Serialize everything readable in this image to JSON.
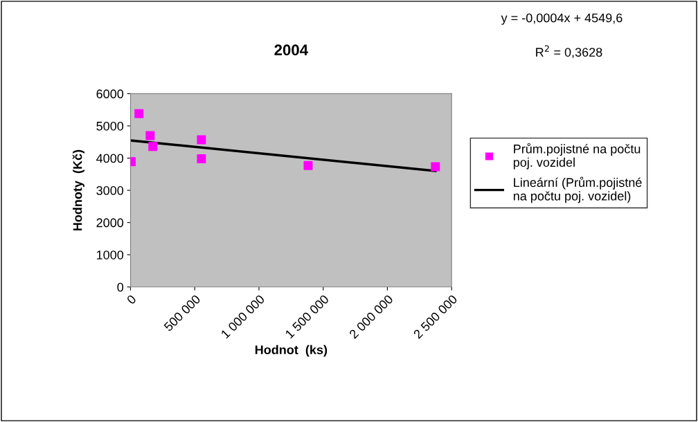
{
  "chart_data": {
    "type": "scatter",
    "title": "2004",
    "xlabel": "Hodnot  (ks)",
    "ylabel": "Hodnoty  (Kč)",
    "annotations": [
      "y = -0,0004x + 4549,6",
      "R$^{2}$ = 0,3628"
    ],
    "xlim": [
      0,
      2500000
    ],
    "ylim": [
      0,
      6000
    ],
    "xticks": [
      0,
      {
        "value": 500000,
        "label": "500 000"
      },
      {
        "value": 1000000,
        "label": "1 000 000"
      },
      {
        "value": 1500000,
        "label": "1 500 000"
      },
      {
        "value": 2000000,
        "label": "2 000 000"
      },
      {
        "value": 2500000,
        "label": "2 500 000"
      }
    ],
    "yticks": [
      0,
      1000,
      2000,
      3000,
      4000,
      5000,
      6000
    ],
    "grid": false,
    "legend": "right",
    "marker": "square",
    "series": [
      {
        "name": "Prům.pojistné na počtu poj. vozidel",
        "color": "#ff00ff",
        "x": [
          5000,
          66000,
          153000,
          174000,
          552000,
          552000,
          1383000,
          2374000
        ],
        "values": [
          3890,
          5380,
          4700,
          4360,
          4570,
          3980,
          3770,
          3730
        ]
      },
      {
        "name": "Lineární (Prům.pojistné na počtu poj. vozidel)",
        "type": "line",
        "color": "#000000",
        "marker": "none",
        "x": [
          0,
          2374000
        ],
        "values": [
          4549.6,
          3600
        ]
      }
    ]
  }
}
